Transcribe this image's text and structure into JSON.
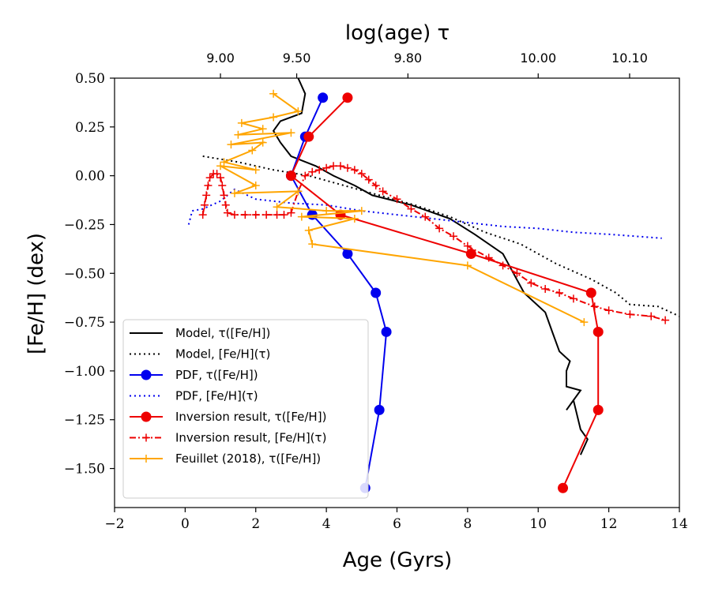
{
  "chart_data": {
    "type": "line",
    "xlabel": "Age (Gyrs)",
    "ylabel": "[Fe/H] (dex)",
    "top_xlabel": "log(age) τ",
    "xlim": [
      -2,
      14
    ],
    "ylim": [
      -1.7,
      0.5
    ],
    "x_ticks": [
      {
        "value": -2,
        "label": "−2"
      },
      {
        "value": 0,
        "label": "0"
      },
      {
        "value": 2,
        "label": "2"
      },
      {
        "value": 4,
        "label": "4"
      },
      {
        "value": 6,
        "label": "6"
      },
      {
        "value": 8,
        "label": "8"
      },
      {
        "value": 10,
        "label": "10"
      },
      {
        "value": 12,
        "label": "12"
      },
      {
        "value": 14,
        "label": "14"
      }
    ],
    "y_ticks": [
      {
        "value": 0.5,
        "label": "0.50"
      },
      {
        "value": 0.25,
        "label": "0.25"
      },
      {
        "value": 0.0,
        "label": "0.00"
      },
      {
        "value": -0.25,
        "label": "−0.25"
      },
      {
        "value": -0.5,
        "label": "−0.50"
      },
      {
        "value": -0.75,
        "label": "−0.75"
      },
      {
        "value": -1.0,
        "label": "−1.00"
      },
      {
        "value": -1.25,
        "label": "−1.25"
      },
      {
        "value": -1.5,
        "label": "−1.50"
      }
    ],
    "top_ticks": [
      {
        "value": 1.0,
        "label": "9.00"
      },
      {
        "value": 3.16,
        "label": "9.50"
      },
      {
        "value": 6.31,
        "label": "9.80"
      },
      {
        "value": 10.0,
        "label": "10.00"
      },
      {
        "value": 12.59,
        "label": "10.10"
      }
    ],
    "series": [
      {
        "name": "Model, τ([Fe/H])",
        "color": "#000000",
        "linestyle": "solid",
        "marker": "none",
        "points": [
          [
            3.2,
            0.5
          ],
          [
            3.4,
            0.42
          ],
          [
            3.3,
            0.32
          ],
          [
            2.7,
            0.28
          ],
          [
            2.5,
            0.23
          ],
          [
            2.7,
            0.17
          ],
          [
            3.0,
            0.1
          ],
          [
            3.7,
            0.05
          ],
          [
            4.2,
            0.0
          ],
          [
            4.8,
            -0.05
          ],
          [
            5.3,
            -0.1
          ],
          [
            6.4,
            -0.15
          ],
          [
            7.5,
            -0.22
          ],
          [
            8.2,
            -0.3
          ],
          [
            9.0,
            -0.4
          ],
          [
            9.3,
            -0.5
          ],
          [
            9.6,
            -0.6
          ],
          [
            10.2,
            -0.7
          ],
          [
            10.4,
            -0.8
          ],
          [
            10.6,
            -0.9
          ],
          [
            10.9,
            -0.95
          ],
          [
            10.8,
            -1.0
          ],
          [
            10.8,
            -1.08
          ],
          [
            11.2,
            -1.1
          ],
          [
            10.8,
            -1.2
          ],
          [
            11.0,
            -1.15
          ],
          [
            11.2,
            -1.3
          ],
          [
            11.4,
            -1.35
          ],
          [
            11.2,
            -1.43
          ]
        ]
      },
      {
        "name": "Model, [Fe/H](τ)",
        "color": "#000000",
        "linestyle": "dotted",
        "marker": "none",
        "points": [
          [
            0.5,
            0.1
          ],
          [
            1.5,
            0.07
          ],
          [
            2.5,
            0.03
          ],
          [
            3.5,
            0.0
          ],
          [
            4.5,
            -0.05
          ],
          [
            5.5,
            -0.1
          ],
          [
            6.5,
            -0.15
          ],
          [
            7.5,
            -0.21
          ],
          [
            8.5,
            -0.29
          ],
          [
            9.5,
            -0.35
          ],
          [
            10.5,
            -0.45
          ],
          [
            11.5,
            -0.53
          ],
          [
            12.2,
            -0.6
          ],
          [
            12.6,
            -0.66
          ],
          [
            13.4,
            -0.67
          ],
          [
            14.0,
            -0.72
          ]
        ]
      },
      {
        "name": "PDF, τ([Fe/H])",
        "color": "#0000ee",
        "linestyle": "solid",
        "marker": "circle",
        "points": [
          [
            3.9,
            0.4
          ],
          [
            3.4,
            0.2
          ],
          [
            3.0,
            0.0
          ],
          [
            3.6,
            -0.2
          ],
          [
            4.6,
            -0.4
          ],
          [
            5.4,
            -0.6
          ],
          [
            5.7,
            -0.8
          ],
          [
            5.5,
            -1.2
          ],
          [
            5.1,
            -1.6
          ]
        ]
      },
      {
        "name": "PDF, [Fe/H](τ)",
        "color": "#0000ee",
        "linestyle": "dotted",
        "marker": "none",
        "points": [
          [
            0.1,
            -0.25
          ],
          [
            0.2,
            -0.18
          ],
          [
            0.5,
            -0.17
          ],
          [
            1.0,
            -0.13
          ],
          [
            1.4,
            -0.07
          ],
          [
            2.0,
            -0.12
          ],
          [
            3.0,
            -0.14
          ],
          [
            4.0,
            -0.15
          ],
          [
            5.0,
            -0.18
          ],
          [
            6.0,
            -0.2
          ],
          [
            7.0,
            -0.22
          ],
          [
            8.0,
            -0.24
          ],
          [
            9.0,
            -0.26
          ],
          [
            10.0,
            -0.27
          ],
          [
            11.0,
            -0.29
          ],
          [
            12.0,
            -0.3
          ],
          [
            13.5,
            -0.32
          ]
        ]
      },
      {
        "name": "Inversion result, τ([Fe/H])",
        "color": "#ee0000",
        "linestyle": "solid",
        "marker": "circle",
        "points": [
          [
            4.6,
            0.4
          ],
          [
            3.5,
            0.2
          ],
          [
            3.0,
            0.0
          ],
          [
            4.4,
            -0.2
          ],
          [
            8.1,
            -0.4
          ],
          [
            11.5,
            -0.6
          ],
          [
            11.7,
            -0.8
          ],
          [
            11.7,
            -1.2
          ],
          [
            10.7,
            -1.6
          ]
        ]
      },
      {
        "name": "Inversion result, [Fe/H](τ)",
        "color": "#ee0000",
        "linestyle": "dashdot",
        "marker": "plus",
        "points": [
          [
            0.5,
            -0.2
          ],
          [
            0.55,
            -0.15
          ],
          [
            0.6,
            -0.1
          ],
          [
            0.65,
            -0.05
          ],
          [
            0.7,
            -0.01
          ],
          [
            0.8,
            0.01
          ],
          [
            0.9,
            0.01
          ],
          [
            1.0,
            -0.01
          ],
          [
            1.05,
            -0.05
          ],
          [
            1.1,
            -0.1
          ],
          [
            1.15,
            -0.15
          ],
          [
            1.2,
            -0.19
          ],
          [
            1.4,
            -0.2
          ],
          [
            1.7,
            -0.2
          ],
          [
            2.0,
            -0.2
          ],
          [
            2.3,
            -0.2
          ],
          [
            2.6,
            -0.2
          ],
          [
            2.8,
            -0.2
          ],
          [
            3.0,
            -0.19
          ],
          [
            3.2,
            -0.08
          ],
          [
            3.4,
            0.0
          ],
          [
            3.6,
            0.02
          ],
          [
            3.8,
            0.03
          ],
          [
            4.0,
            0.04
          ],
          [
            4.2,
            0.05
          ],
          [
            4.4,
            0.05
          ],
          [
            4.6,
            0.04
          ],
          [
            4.8,
            0.03
          ],
          [
            5.0,
            0.01
          ],
          [
            5.2,
            -0.02
          ],
          [
            5.4,
            -0.05
          ],
          [
            5.6,
            -0.08
          ],
          [
            6.0,
            -0.12
          ],
          [
            6.4,
            -0.17
          ],
          [
            6.8,
            -0.21
          ],
          [
            7.2,
            -0.27
          ],
          [
            7.6,
            -0.31
          ],
          [
            8.0,
            -0.36
          ],
          [
            8.6,
            -0.42
          ],
          [
            9.0,
            -0.46
          ],
          [
            9.4,
            -0.5
          ],
          [
            9.8,
            -0.55
          ],
          [
            10.2,
            -0.58
          ],
          [
            10.6,
            -0.6
          ],
          [
            11.0,
            -0.63
          ],
          [
            11.6,
            -0.67
          ],
          [
            12.0,
            -0.69
          ],
          [
            12.6,
            -0.71
          ],
          [
            13.2,
            -0.72
          ],
          [
            13.6,
            -0.74
          ]
        ]
      },
      {
        "name": "Feuillet (2018), τ([Fe/H])",
        "color": "#ffa500",
        "linestyle": "solid",
        "marker": "plus",
        "points": [
          [
            2.5,
            0.42
          ],
          [
            3.2,
            0.33
          ],
          [
            2.5,
            0.3
          ],
          [
            1.6,
            0.27
          ],
          [
            2.2,
            0.24
          ],
          [
            1.5,
            0.21
          ],
          [
            3.0,
            0.22
          ],
          [
            1.3,
            0.16
          ],
          [
            2.2,
            0.17
          ],
          [
            1.9,
            0.13
          ],
          [
            1.1,
            0.07
          ],
          [
            2.0,
            0.03
          ],
          [
            1.0,
            0.05
          ],
          [
            2.0,
            -0.05
          ],
          [
            1.4,
            -0.09
          ],
          [
            3.2,
            -0.08
          ],
          [
            2.6,
            -0.16
          ],
          [
            4.0,
            -0.18
          ],
          [
            5.0,
            -0.18
          ],
          [
            3.3,
            -0.21
          ],
          [
            4.8,
            -0.22
          ],
          [
            3.5,
            -0.28
          ],
          [
            3.6,
            -0.35
          ],
          [
            8.0,
            -0.46
          ],
          [
            11.3,
            -0.75
          ]
        ]
      }
    ]
  }
}
